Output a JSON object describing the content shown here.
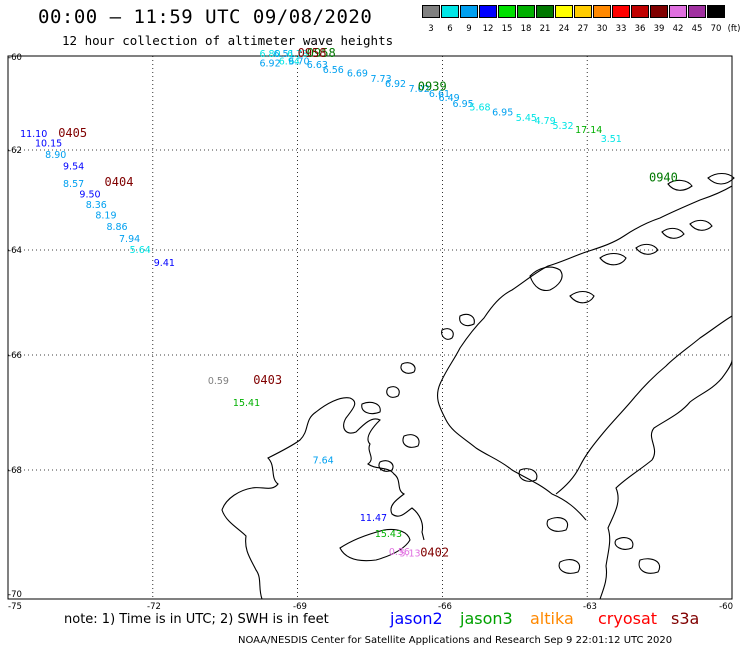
{
  "header": {
    "title": "00:00 – 11:59 UTC 09/08/2020",
    "subtitle": "12 hour collection of altimeter wave heights"
  },
  "legend": {
    "unit_label": "(ft)",
    "entries": [
      {
        "label": "3",
        "color": "#808080"
      },
      {
        "label": "6",
        "color": "#00e5e5"
      },
      {
        "label": "9",
        "color": "#00a0f0"
      },
      {
        "label": "12",
        "color": "#0000ff"
      },
      {
        "label": "15",
        "color": "#00e000"
      },
      {
        "label": "18",
        "color": "#00b000"
      },
      {
        "label": "21",
        "color": "#007800"
      },
      {
        "label": "24",
        "color": "#ffff00"
      },
      {
        "label": "27",
        "color": "#ffcc00"
      },
      {
        "label": "30",
        "color": "#ff8800"
      },
      {
        "label": "33",
        "color": "#ff0000"
      },
      {
        "label": "36",
        "color": "#c00000"
      },
      {
        "label": "39",
        "color": "#800000"
      },
      {
        "label": "42",
        "color": "#e070e0"
      },
      {
        "label": "45",
        "color": "#a030a0"
      },
      {
        "label": "70",
        "color": "#000000"
      }
    ]
  },
  "axes": {
    "lat_labels": [
      "-60",
      "-62",
      "-64",
      "-66",
      "-68",
      "-70"
    ],
    "lon_labels": [
      "-75",
      "-72",
      "-69",
      "-66",
      "-63",
      "-60"
    ]
  },
  "observations": [
    {
      "v": "6.80",
      "lon": -69.79,
      "lat": -60.02,
      "c": "#00e5e5"
    },
    {
      "v": "6.51",
      "lon": -69.5,
      "lat": -60.02,
      "c": "#00a0f0"
    },
    {
      "v": "6.78",
      "lon": -69.22,
      "lat": -60.02,
      "c": "#00e5e5"
    },
    {
      "v": "6.92",
      "lon": -69.79,
      "lat": -60.22,
      "c": "#00a0f0"
    },
    {
      "v": "6.94",
      "lon": -69.39,
      "lat": -60.18,
      "c": "#00e5e5"
    },
    {
      "v": "6.70",
      "lon": -69.19,
      "lat": -60.18,
      "c": "#00a0f0"
    },
    {
      "v": "6.63",
      "lon": -68.81,
      "lat": -60.25,
      "c": "#00a0f0"
    },
    {
      "v": "6.56",
      "lon": -68.48,
      "lat": -60.36,
      "c": "#00a0f0"
    },
    {
      "v": "6.69",
      "lon": -67.98,
      "lat": -60.44,
      "c": "#00a0f0"
    },
    {
      "v": "7.73",
      "lon": -67.49,
      "lat": -60.55,
      "c": "#00a0f0"
    },
    {
      "v": "6.92",
      "lon": -67.19,
      "lat": -60.66,
      "c": "#00a0f0"
    },
    {
      "v": "7.02",
      "lon": -66.7,
      "lat": -60.77,
      "c": "#00a0f0"
    },
    {
      "v": "6.61",
      "lon": -66.28,
      "lat": -60.87,
      "c": "#00a0f0"
    },
    {
      "v": "6.49",
      "lon": -66.08,
      "lat": -60.96,
      "c": "#00a0f0"
    },
    {
      "v": "6.95",
      "lon": -65.79,
      "lat": -61.09,
      "c": "#00a0f0"
    },
    {
      "v": "5.68",
      "lon": -65.44,
      "lat": -61.16,
      "c": "#00e5e5"
    },
    {
      "v": "6.95",
      "lon": -64.97,
      "lat": -61.27,
      "c": "#00a0f0"
    },
    {
      "v": "5.45",
      "lon": -64.48,
      "lat": -61.38,
      "c": "#00e5e5"
    },
    {
      "v": "4.79",
      "lon": -64.09,
      "lat": -61.45,
      "c": "#00e5e5"
    },
    {
      "v": "5.32",
      "lon": -63.72,
      "lat": -61.55,
      "c": "#00e5e5"
    },
    {
      "v": "17.14",
      "lon": -63.25,
      "lat": -61.64,
      "c": "#00b000"
    },
    {
      "v": "3.51",
      "lon": -62.72,
      "lat": -61.83,
      "c": "#00e5e5"
    },
    {
      "v": "11.10",
      "lon": -74.75,
      "lat": -61.72,
      "c": "#0000ff"
    },
    {
      "v": "10.15",
      "lon": -74.44,
      "lat": -61.93,
      "c": "#0000ff"
    },
    {
      "v": "8.90",
      "lon": -74.23,
      "lat": -62.16,
      "c": "#00a0f0"
    },
    {
      "v": "9.54",
      "lon": -73.86,
      "lat": -62.39,
      "c": "#0000ff"
    },
    {
      "v": "8.57",
      "lon": -73.86,
      "lat": -62.74,
      "c": "#00a0f0"
    },
    {
      "v": "9.50",
      "lon": -73.52,
      "lat": -62.95,
      "c": "#0000ff"
    },
    {
      "v": "8.36",
      "lon": -73.39,
      "lat": -63.16,
      "c": "#00a0f0"
    },
    {
      "v": "8.19",
      "lon": -73.19,
      "lat": -63.37,
      "c": "#00a0f0"
    },
    {
      "v": "8.86",
      "lon": -72.96,
      "lat": -63.6,
      "c": "#00a0f0"
    },
    {
      "v": "7.94",
      "lon": -72.7,
      "lat": -63.84,
      "c": "#00a0f0"
    },
    {
      "v": "5.64",
      "lon": -72.48,
      "lat": -64.06,
      "c": "#00e5e5"
    },
    {
      "v": "9.41",
      "lon": -71.98,
      "lat": -64.3,
      "c": "#0000ff"
    },
    {
      "v": "0.59",
      "lon": -70.86,
      "lat": -66.5,
      "c": "#808080"
    },
    {
      "v": "15.41",
      "lon": -70.34,
      "lat": -66.89,
      "c": "#00b000"
    },
    {
      "v": "7.64",
      "lon": -68.69,
      "lat": -67.89,
      "c": "#00a0f0"
    },
    {
      "v": "11.47",
      "lon": -67.71,
      "lat": -68.79,
      "c": "#0000ff"
    },
    {
      "v": "15.43",
      "lon": -67.4,
      "lat": -69.04,
      "c": "#00b000"
    },
    {
      "v": "0.56",
      "lon": -67.11,
      "lat": -69.32,
      "c": "#e070e0"
    },
    {
      "v": "5.13",
      "lon": -66.89,
      "lat": -69.34,
      "c": "#e070e0"
    }
  ],
  "pass_times": [
    {
      "t": "0958",
      "lon": -68.81,
      "lat": -60.02,
      "c": "#007800"
    },
    {
      "t": "0958",
      "lon": -69.0,
      "lat": -60.02,
      "c": "#800000"
    },
    {
      "t": "0939",
      "lon": -66.51,
      "lat": -60.73,
      "c": "#007800"
    },
    {
      "t": "0940",
      "lon": -61.72,
      "lat": -62.63,
      "c": "#007800"
    },
    {
      "t": "0405",
      "lon": -73.96,
      "lat": -61.72,
      "c": "#800000"
    },
    {
      "t": "0404",
      "lon": -73.0,
      "lat": -62.72,
      "c": "#800000"
    },
    {
      "t": "0403",
      "lon": -69.92,
      "lat": -66.5,
      "c": "#800000"
    },
    {
      "t": "0402",
      "lon": -66.46,
      "lat": -69.34,
      "c": "#800000"
    }
  ],
  "footer": {
    "note": "note:  1) Time is in UTC;  2) SWH is in feet",
    "satellites": [
      {
        "name": "jason2",
        "color": "#0000ff"
      },
      {
        "name": "jason3",
        "color": "#00a000"
      },
      {
        "name": "altika",
        "color": "#ff8800"
      },
      {
        "name": "cryosat",
        "color": "#ff0000"
      },
      {
        "name": "s3a",
        "color": "#800000"
      }
    ],
    "credit": "NOAA/NESDIS Center for Satellite Applications and Research    Sep  9 22:01:12 UTC 2020"
  }
}
